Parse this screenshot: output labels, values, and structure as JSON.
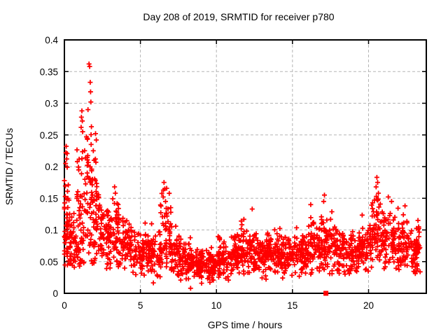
{
  "page": {
    "background_color": "#ffffff"
  },
  "chart_data": {
    "type": "scatter",
    "title": "Day 208 of 2019, SRMTID for receiver p780",
    "xlabel": "GPS time / hours",
    "ylabel": "SRMTID / TECUs",
    "xlim": [
      0,
      23.8
    ],
    "ylim": [
      0,
      0.4
    ],
    "xticks": {
      "values": [
        0,
        5,
        10,
        15,
        20
      ],
      "labels": [
        "0",
        "5",
        "10",
        "15",
        "20"
      ]
    },
    "yticks": {
      "values": [
        0,
        0.05,
        0.1,
        0.15,
        0.2,
        0.25,
        0.3,
        0.35,
        0.4
      ],
      "labels": [
        "0",
        "0.05",
        "0.1",
        "0.15",
        "0.2",
        "0.25",
        "0.3",
        "0.35",
        "0.4"
      ]
    },
    "grid": true,
    "legend": "none",
    "marker": {
      "shape": "plus",
      "color": "#ff0000",
      "size": 7
    },
    "axis_marker": {
      "x": 17.2,
      "y": 0,
      "shape": "filled-square",
      "color": "#ff0000",
      "size": 7
    },
    "series_name": "SRMTID",
    "seed": 208,
    "bins_format": [
      "t_start_hours",
      "t_end_hours",
      "n_points",
      "mean_tecus",
      "sd_tecus",
      "min_tecus",
      "max_tecus"
    ],
    "density_bins": [
      [
        0.0,
        0.3,
        45,
        0.11,
        0.045,
        0.042,
        0.235
      ],
      [
        0.3,
        0.8,
        50,
        0.075,
        0.025,
        0.035,
        0.16
      ],
      [
        0.8,
        1.3,
        55,
        0.115,
        0.05,
        0.04,
        0.29
      ],
      [
        1.3,
        1.9,
        60,
        0.14,
        0.06,
        0.045,
        0.33
      ],
      [
        1.9,
        2.4,
        55,
        0.115,
        0.04,
        0.04,
        0.24
      ],
      [
        2.4,
        3.0,
        55,
        0.085,
        0.022,
        0.035,
        0.155
      ],
      [
        3.0,
        3.6,
        55,
        0.09,
        0.025,
        0.04,
        0.165
      ],
      [
        3.6,
        4.5,
        70,
        0.077,
        0.02,
        0.03,
        0.14
      ],
      [
        4.5,
        5.5,
        75,
        0.065,
        0.018,
        0.025,
        0.12
      ],
      [
        5.5,
        6.3,
        65,
        0.06,
        0.02,
        0.012,
        0.11
      ],
      [
        6.3,
        7.0,
        60,
        0.095,
        0.03,
        0.04,
        0.175
      ],
      [
        7.0,
        7.6,
        55,
        0.06,
        0.022,
        0.01,
        0.11
      ],
      [
        7.6,
        8.4,
        70,
        0.052,
        0.015,
        0.02,
        0.095
      ],
      [
        8.4,
        9.2,
        70,
        0.047,
        0.013,
        0.008,
        0.085
      ],
      [
        9.2,
        10.0,
        70,
        0.045,
        0.013,
        0.015,
        0.08
      ],
      [
        10.0,
        10.8,
        70,
        0.052,
        0.015,
        0.02,
        0.09
      ],
      [
        10.8,
        11.6,
        70,
        0.06,
        0.018,
        0.025,
        0.12
      ],
      [
        11.6,
        12.5,
        75,
        0.065,
        0.02,
        0.025,
        0.135
      ],
      [
        12.5,
        13.4,
        75,
        0.058,
        0.016,
        0.02,
        0.105
      ],
      [
        13.4,
        14.3,
        75,
        0.066,
        0.017,
        0.025,
        0.11
      ],
      [
        14.3,
        15.2,
        75,
        0.058,
        0.016,
        0.02,
        0.1
      ],
      [
        15.2,
        16.0,
        70,
        0.062,
        0.017,
        0.025,
        0.11
      ],
      [
        16.0,
        16.8,
        70,
        0.072,
        0.02,
        0.03,
        0.14
      ],
      [
        16.8,
        17.6,
        70,
        0.08,
        0.024,
        0.03,
        0.155
      ],
      [
        17.6,
        18.5,
        70,
        0.068,
        0.02,
        0.015,
        0.125
      ],
      [
        18.5,
        19.4,
        70,
        0.062,
        0.018,
        0.025,
        0.115
      ],
      [
        19.4,
        20.2,
        65,
        0.075,
        0.02,
        0.035,
        0.13
      ],
      [
        20.2,
        20.9,
        60,
        0.095,
        0.03,
        0.04,
        0.185
      ],
      [
        20.9,
        21.8,
        70,
        0.085,
        0.025,
        0.035,
        0.155
      ],
      [
        21.8,
        22.7,
        70,
        0.075,
        0.022,
        0.03,
        0.14
      ],
      [
        22.7,
        23.4,
        60,
        0.065,
        0.022,
        0.03,
        0.12
      ]
    ],
    "highlight_points": [
      [
        1.62,
        0.362
      ],
      [
        1.66,
        0.358
      ],
      [
        1.7,
        0.333
      ],
      [
        1.72,
        0.318
      ],
      [
        1.74,
        0.302
      ],
      [
        1.55,
        0.29
      ],
      [
        1.15,
        0.288
      ],
      [
        1.12,
        0.278
      ],
      [
        1.18,
        0.272
      ],
      [
        1.1,
        0.262
      ],
      [
        1.2,
        0.255
      ],
      [
        1.45,
        0.247
      ],
      [
        2.05,
        0.252
      ],
      [
        2.1,
        0.242
      ],
      [
        1.9,
        0.225
      ],
      [
        1.95,
        0.21
      ],
      [
        0.12,
        0.232
      ],
      [
        0.1,
        0.222
      ],
      [
        0.15,
        0.212
      ],
      [
        0.08,
        0.205
      ],
      [
        1.5,
        0.19
      ],
      [
        1.35,
        0.18
      ],
      [
        3.3,
        0.168
      ],
      [
        3.35,
        0.158
      ],
      [
        6.55,
        0.175
      ],
      [
        6.6,
        0.165
      ],
      [
        6.5,
        0.152
      ],
      [
        6.65,
        0.145
      ],
      [
        12.35,
        0.133
      ],
      [
        16.2,
        0.14
      ],
      [
        17.1,
        0.155
      ],
      [
        17.05,
        0.145
      ],
      [
        20.55,
        0.183
      ],
      [
        20.6,
        0.175
      ],
      [
        20.5,
        0.168
      ],
      [
        20.65,
        0.158
      ],
      [
        20.55,
        0.148
      ],
      [
        21.3,
        0.152
      ],
      [
        22.4,
        0.138
      ],
      [
        23.25,
        0.115
      ],
      [
        23.3,
        0.105
      ],
      [
        8.3,
        0.008
      ]
    ],
    "style": {
      "border_color": "#000000",
      "grid_color": "#b5b5b5",
      "tick_color": "#000000"
    }
  }
}
